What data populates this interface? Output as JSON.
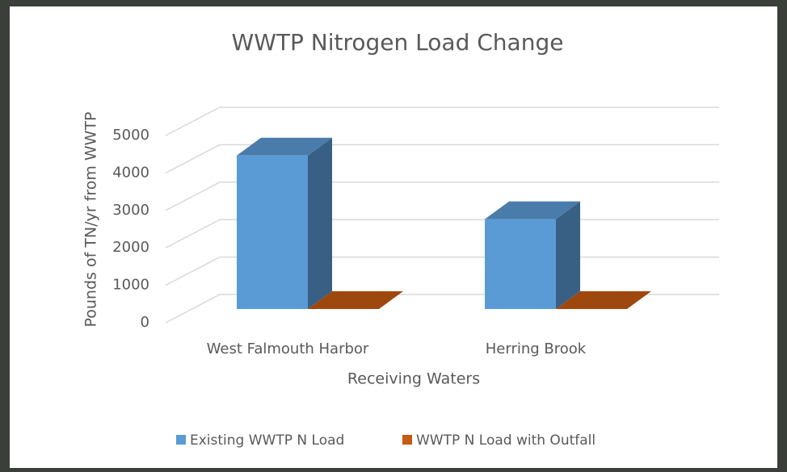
{
  "chart_data": {
    "type": "bar3d",
    "title": "WWTP Nitrogen Load Change",
    "x_label": "Receiving Waters",
    "y_label": "Pounds of TN/yr from WWTP",
    "categories": [
      "West Falmouth Harbor",
      "Herring Brook"
    ],
    "series": [
      {
        "name": "Existing WWTP N Load",
        "color": "#5b9bd5",
        "values": [
          4100,
          2400
        ]
      },
      {
        "name": "WWTP N Load with Outfall",
        "color": "#c55a11",
        "values": [
          0,
          0
        ]
      }
    ],
    "ylim": [
      0,
      5000
    ],
    "yticks": [
      0,
      1000,
      2000,
      3000,
      4000,
      5000
    ],
    "grid": true,
    "legend": "bottom"
  }
}
